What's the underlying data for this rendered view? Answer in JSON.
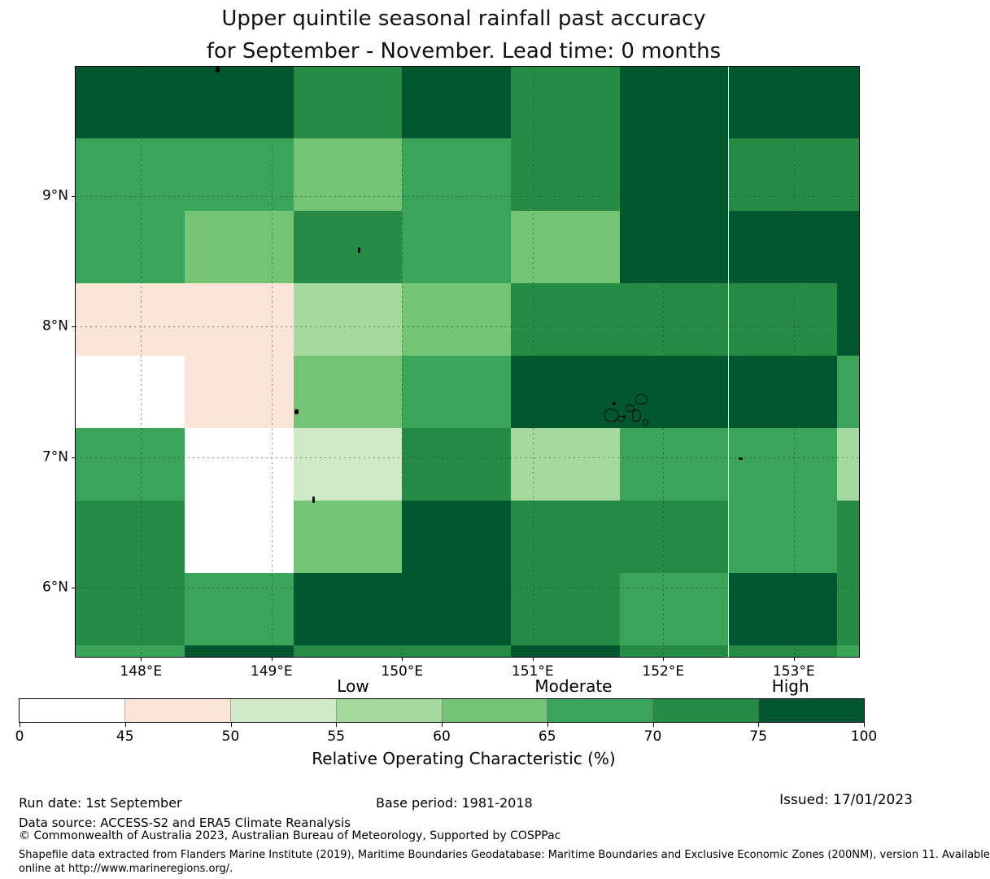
{
  "title": {
    "line1": "Upper quintile seasonal rainfall past accuracy",
    "line2": "for September - November. Lead time: 0 months"
  },
  "chart_data": {
    "type": "heatmap",
    "title": "Upper quintile seasonal rainfall past accuracy for September - November. Lead time: 0 months",
    "map_region": {
      "lon_range": [
        147.5,
        153.5
      ],
      "lat_range": [
        5.47,
        9.99
      ]
    },
    "x_ticks": [
      {
        "lon": 148,
        "label": "148°E"
      },
      {
        "lon": 149,
        "label": "149°E"
      },
      {
        "lon": 150,
        "label": "150°E"
      },
      {
        "lon": 151,
        "label": "151°E"
      },
      {
        "lon": 152,
        "label": "152°E"
      },
      {
        "lon": 153,
        "label": "153°E"
      }
    ],
    "y_ticks": [
      {
        "lat": 9,
        "label": "9°N"
      },
      {
        "lat": 8,
        "label": "8°N"
      },
      {
        "lat": 7,
        "label": "7°N"
      },
      {
        "lat": 6,
        "label": "6°N"
      }
    ],
    "gridline_lons": [
      148,
      149,
      150,
      151,
      152,
      153
    ],
    "gridline_lats": [
      6,
      7,
      8,
      9
    ],
    "lon_edges": [
      147.5,
      148.333,
      149.167,
      150.0,
      150.833,
      151.667,
      152.5,
      153.333,
      153.5
    ],
    "lat_edges": [
      9.99,
      9.444,
      8.889,
      8.333,
      7.778,
      7.222,
      6.667,
      6.111,
      5.556,
      5.47
    ],
    "bins": [
      {
        "range": "0-45",
        "color": "#ffffff"
      },
      {
        "range": "45-50",
        "color": "#fbe5d6"
      },
      {
        "range": "50-55",
        "color": "#cfeac6"
      },
      {
        "range": "55-60",
        "color": "#a5d99e"
      },
      {
        "range": "60-65",
        "color": "#74c476"
      },
      {
        "range": "65-70",
        "color": "#3aa55a"
      },
      {
        "range": "70-75",
        "color": "#268b45"
      },
      {
        "range": "75-100",
        "color": "#00572e"
      }
    ],
    "grid": [
      [
        "75-100",
        "75-100",
        "70-75",
        "75-100",
        "70-75",
        "75-100",
        "75-100",
        "75-100"
      ],
      [
        "65-70",
        "65-70",
        "60-65",
        "65-70",
        "70-75",
        "75-100",
        "70-75",
        "70-75"
      ],
      [
        "65-70",
        "60-65",
        "70-75",
        "65-70",
        "60-65",
        "75-100",
        "75-100",
        "75-100"
      ],
      [
        "45-50",
        "45-50",
        "55-60",
        "60-65",
        "70-75",
        "70-75",
        "70-75",
        "75-100"
      ],
      [
        "0-45",
        "45-50",
        "60-65",
        "65-70",
        "75-100",
        "75-100",
        "75-100",
        "65-70"
      ],
      [
        "65-70",
        "0-45",
        "50-55",
        "70-75",
        "55-60",
        "65-70",
        "65-70",
        "55-60"
      ],
      [
        "70-75",
        "0-45",
        "60-65",
        "75-100",
        "70-75",
        "70-75",
        "65-70",
        "70-75"
      ],
      [
        "70-75",
        "65-70",
        "75-100",
        "75-100",
        "70-75",
        "65-70",
        "75-100",
        "70-75"
      ],
      [
        "65-70",
        "75-100",
        "70-75",
        "70-75",
        "75-100",
        "70-75",
        "70-75",
        "65-70"
      ]
    ],
    "islands": [
      {
        "x": 650,
        "y": 420,
        "w": 16,
        "h": 14,
        "filled": false
      },
      {
        "x": 666,
        "y": 429,
        "w": 7,
        "h": 5,
        "filled": false
      },
      {
        "x": 676,
        "y": 415,
        "w": 9,
        "h": 7,
        "filled": false
      },
      {
        "x": 688,
        "y": 402,
        "w": 13,
        "h": 11,
        "filled": false
      },
      {
        "x": 684,
        "y": 421,
        "w": 9,
        "h": 13,
        "filled": false
      },
      {
        "x": 697,
        "y": 433,
        "w": 5,
        "h": 6,
        "filled": false
      },
      {
        "x": 660,
        "y": 412,
        "w": 4,
        "h": 4,
        "filled": true
      },
      {
        "x": 673,
        "y": 428,
        "w": 3,
        "h": 3,
        "filled": true
      },
      {
        "x": 172,
        "y": 0,
        "w": 5,
        "h": 7,
        "filled": true
      },
      {
        "x": 347,
        "y": 222,
        "w": 3,
        "h": 7,
        "filled": true
      },
      {
        "x": 269,
        "y": 421,
        "w": 5,
        "h": 6,
        "filled": true
      },
      {
        "x": 291,
        "y": 528,
        "w": 3,
        "h": 8,
        "filled": true
      },
      {
        "x": 815,
        "y": 480,
        "w": 5,
        "h": 3,
        "filled": true
      }
    ],
    "colorbar": {
      "tick_labels": [
        "0",
        "45",
        "50",
        "55",
        "60",
        "65",
        "70",
        "75",
        "100"
      ],
      "categories": [
        {
          "label": "Low",
          "pos": 0.395
        },
        {
          "label": "Moderate",
          "pos": 0.656
        },
        {
          "label": "High",
          "pos": 0.913
        }
      ],
      "axis_label": "Relative Operating Characteristic (%)"
    },
    "legend_position": "bottom",
    "grid_on": true
  },
  "footer": {
    "run_date": "Run date: 1st September",
    "base_period": "Base period: 1981-2018",
    "issued": "Issued: 17/01/2023",
    "data_source": "Data source: ACCESS-S2 and ERA5 Climate Reanalysis",
    "copyright": "© Commonwealth of Australia 2023, Australian Bureau of Meteorology, Supported by COSPPac",
    "shapefile_line1": "Shapefile data extracted from Flanders Marine Institute (2019), Maritime Boundaries Geodatabase: Maritime Boundaries and Exclusive Economic Zones (200NM), version 11. Available",
    "shapefile_line2": "online at http://www.marineregions.org/."
  }
}
